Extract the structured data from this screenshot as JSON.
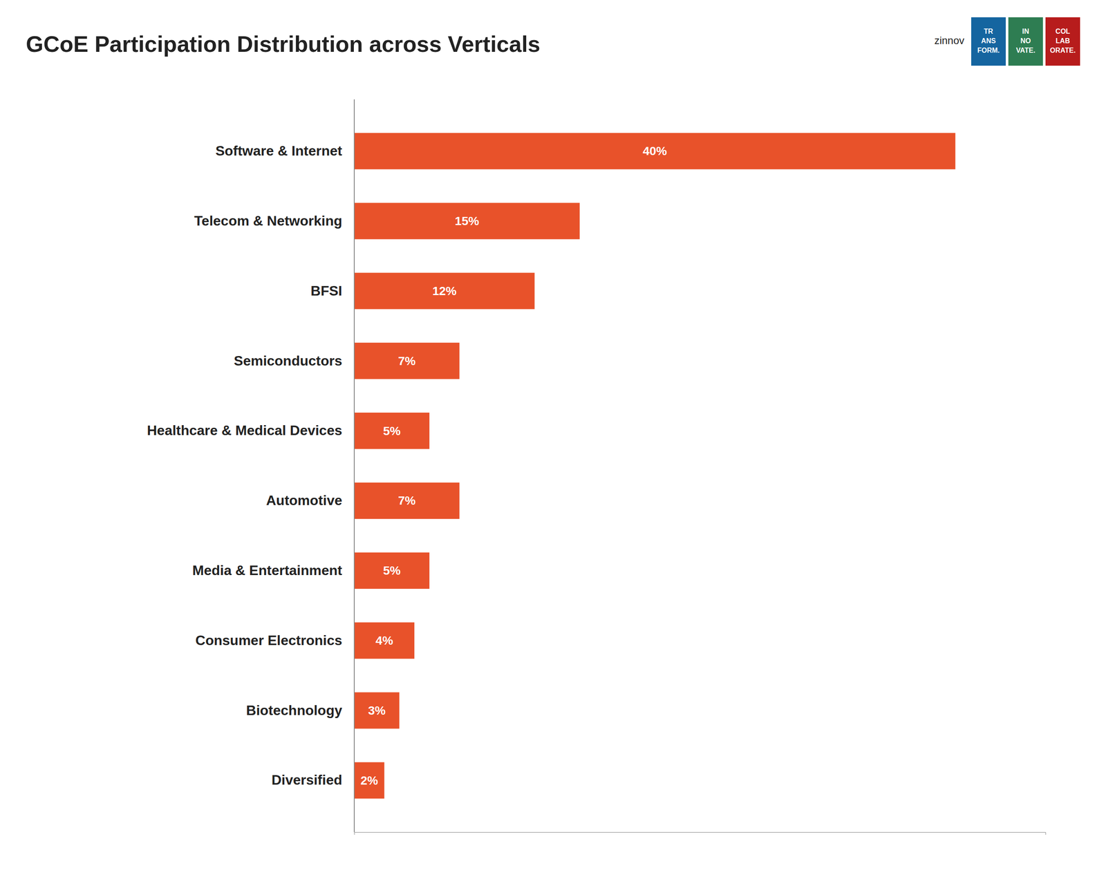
{
  "chart_data": {
    "type": "bar",
    "orientation": "horizontal",
    "title": "GCoE Participation Distribution across Verticals",
    "categories": [
      "Software & Internet",
      "Telecom & Networking",
      "BFSI",
      "Semiconductors",
      "Healthcare & Medical Devices",
      "Automotive",
      "Media & Entertainment",
      "Consumer Electronics",
      "Biotechnology",
      "Diversified"
    ],
    "values": [
      40,
      15,
      12,
      7,
      5,
      7,
      5,
      4,
      3,
      2
    ],
    "value_labels": [
      "40%",
      "15%",
      "12%",
      "7%",
      "5%",
      "7%",
      "5%",
      "4%",
      "3%",
      "2%"
    ],
    "data_labels": true,
    "color": "#E8522A",
    "xlim": [
      0,
      46
    ],
    "grid": false,
    "tick_labels": "y",
    "annotations": [
      {
        "text": "zinnov"
      },
      {
        "text": "TR\nANS\nFORM.",
        "color": "#1565A0"
      },
      {
        "text": "IN\nNO\nVATE.",
        "color": "#2E7D52"
      },
      {
        "text": "COL\nLAB\nORATE.",
        "color": "#B71C1C"
      }
    ]
  }
}
